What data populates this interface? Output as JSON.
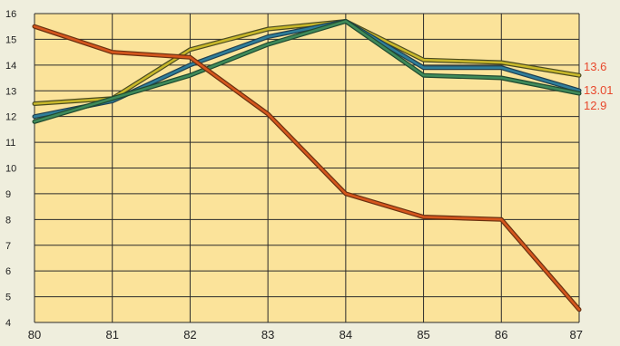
{
  "chart_data": {
    "type": "line",
    "x": [
      "80",
      "81",
      "82",
      "83",
      "84",
      "85",
      "86",
      "87"
    ],
    "ylim": [
      4,
      16
    ],
    "yticks": [
      "4",
      "5",
      "6",
      "7",
      "8",
      "9",
      "10",
      "11",
      "12",
      "13",
      "14",
      "15",
      "16"
    ],
    "grid": true,
    "title": "",
    "xlabel": "",
    "ylabel": "",
    "series": [
      {
        "values": [
          12.5,
          12.7,
          14.6,
          15.4,
          15.7,
          14.2,
          14.1,
          13.6
        ],
        "end_label": "13.6",
        "color": "#c8b82a",
        "edge": "#4a4a20"
      },
      {
        "values": [
          12.0,
          12.6,
          14.0,
          15.1,
          15.7,
          13.9,
          13.9,
          13.01
        ],
        "end_label": "13.01",
        "color": "#2f7e9a",
        "edge": "#1f3f4f"
      },
      {
        "values": [
          11.8,
          12.7,
          13.6,
          14.8,
          15.7,
          13.6,
          13.5,
          12.9
        ],
        "end_label": "12.9",
        "color": "#3f8a5a",
        "edge": "#1f4a30"
      },
      {
        "values": [
          15.5,
          14.5,
          14.3,
          12.1,
          9.0,
          8.1,
          8.0,
          4.5
        ],
        "color": "#d5561d",
        "edge": "#6a3010"
      }
    ]
  },
  "colors": {
    "plot_background": "#fbe39a",
    "grid": "#2b2b2b",
    "end_label": "#e8482c",
    "tick_label": "#222222"
  }
}
